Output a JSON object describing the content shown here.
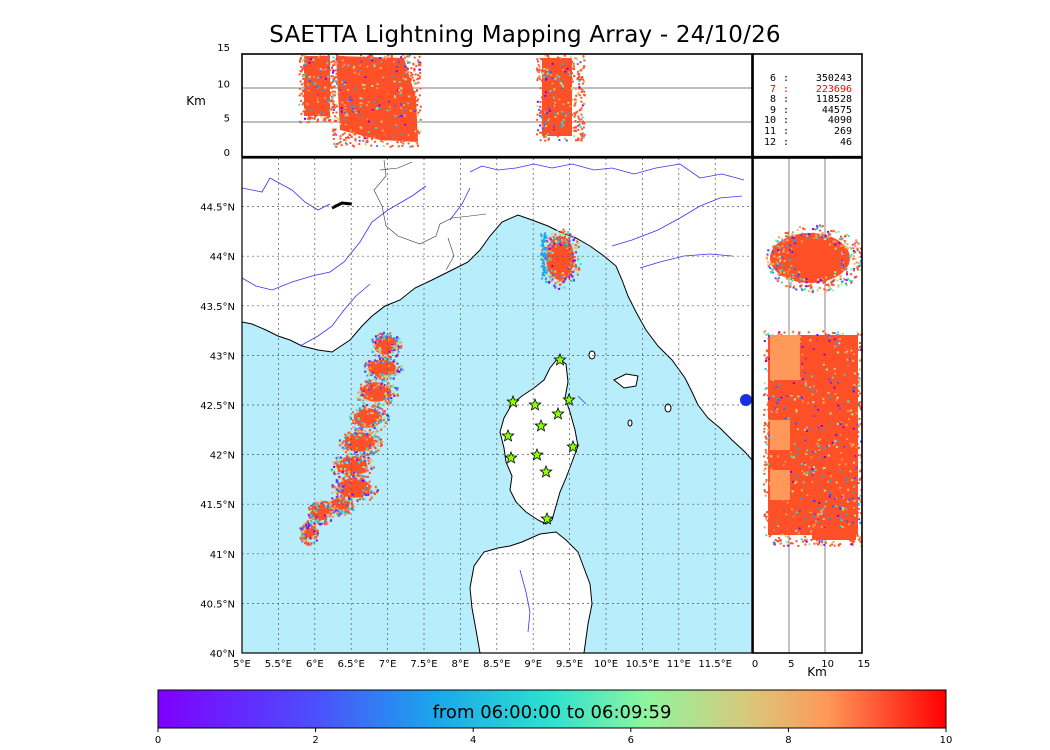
{
  "title": "SAETTA Lightning Mapping Array - 24/10/26",
  "stats": [
    {
      "n": "6",
      "v": "350243",
      "highlight": false
    },
    {
      "n": "7",
      "v": "223696",
      "highlight": true
    },
    {
      "n": "8",
      "v": "118528",
      "highlight": false
    },
    {
      "n": "9",
      "v": "44575",
      "highlight": false
    },
    {
      "n": "10",
      "v": "4090",
      "highlight": false
    },
    {
      "n": "11",
      "v": "269",
      "highlight": false
    },
    {
      "n": "12",
      "v": "46",
      "highlight": false
    }
  ],
  "stats_sep": ":",
  "altitude_unit": "Km",
  "altitude_ticks": [
    "0",
    "5",
    "10",
    "15"
  ],
  "lon_ticks": [
    "5°E",
    "5.5°E",
    "6°E",
    "6.5°E",
    "7°E",
    "7.5°E",
    "8°E",
    "8.5°E",
    "9°E",
    "9.5°E",
    "10°E",
    "10.5°E",
    "11°E",
    "11.5°E"
  ],
  "lat_ticks": [
    "40°N",
    "40.5°N",
    "41°N",
    "41.5°N",
    "42°N",
    "42.5°N",
    "43°N",
    "43.5°N",
    "44°N",
    "44.5°N"
  ],
  "colorbar": {
    "label": "from 06:00:00 to 06:09:59",
    "ticks": [
      "0",
      "2",
      "4",
      "6",
      "8",
      "10"
    ],
    "range": [
      0,
      10
    ],
    "colormap": "rainbow"
  },
  "colors": {
    "sea": "#b8eefc",
    "land": "#ffffff",
    "coast": "#000000",
    "rivers": "#3333ff",
    "grid": "#555555",
    "dominant_source": "#ff5028"
  },
  "stations_icon": "star-icon"
}
